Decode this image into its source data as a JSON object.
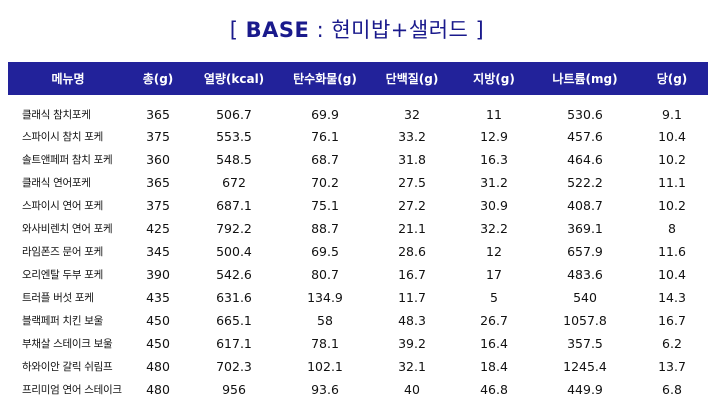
{
  "title": {
    "open_bracket": "[",
    "base": "BASE",
    "colon": " : ",
    "subtitle": "현미밥+샐러드",
    "close_bracket": "]"
  },
  "colors": {
    "title": "#1a1a8c",
    "header_bg": "#22229a",
    "header_text": "#ffffff"
  },
  "table": {
    "headers": [
      "메뉴명",
      "총(g)",
      "열량(kcal)",
      "탄수화물(g)",
      "단백질(g)",
      "지방(g)",
      "나트륨(mg)",
      "당(g)"
    ],
    "rows": [
      [
        "클래식 참치포케",
        "365",
        "506.7",
        "69.9",
        "32",
        "11",
        "530.6",
        "9.1"
      ],
      [
        "스파이시 참치 포케",
        "375",
        "553.5",
        "76.1",
        "33.2",
        "12.9",
        "457.6",
        "10.4"
      ],
      [
        "솔트앤페퍼 참치 포케",
        "360",
        "548.5",
        "68.7",
        "31.8",
        "16.3",
        "464.6",
        "10.2"
      ],
      [
        "클래식 연어포케",
        "365",
        "672",
        "70.2",
        "27.5",
        "31.2",
        "522.2",
        "11.1"
      ],
      [
        "스파이시 연어 포케",
        "375",
        "687.1",
        "75.1",
        "27.2",
        "30.9",
        "408.7",
        "10.2"
      ],
      [
        "와사비렌치 연어 포케",
        "425",
        "792.2",
        "88.7",
        "21.1",
        "32.2",
        "369.1",
        "8"
      ],
      [
        "라임폰즈 문어 포케",
        "345",
        "500.4",
        "69.5",
        "28.6",
        "12",
        "657.9",
        "11.6"
      ],
      [
        "오리엔탈 두부 포케",
        "390",
        "542.6",
        "80.7",
        "16.7",
        "17",
        "483.6",
        "10.4"
      ],
      [
        "트러플 버섯 포케",
        "435",
        "631.6",
        "134.9",
        "11.7",
        "5",
        "540",
        "14.3"
      ],
      [
        "블랙페퍼 치킨 보울",
        "450",
        "665.1",
        "58",
        "48.3",
        "26.7",
        "1057.8",
        "16.7"
      ],
      [
        "부채살 스테이크 보울",
        "450",
        "617.1",
        "78.1",
        "39.2",
        "16.4",
        "357.5",
        "6.2"
      ],
      [
        "하와이안 갈릭 쉬림프",
        "480",
        "702.3",
        "102.1",
        "32.1",
        "18.4",
        "1245.4",
        "13.7"
      ],
      [
        "프리미엄 연어 스테이크",
        "480",
        "956",
        "93.6",
        "40",
        "46.8",
        "449.9",
        "6.8"
      ]
    ]
  }
}
